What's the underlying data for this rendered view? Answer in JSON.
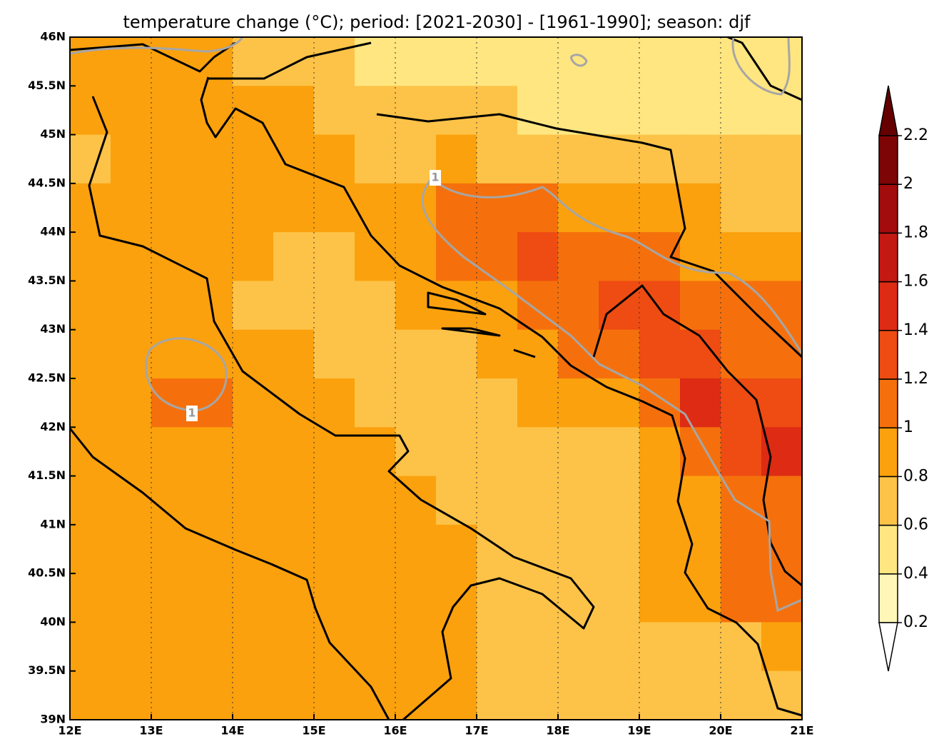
{
  "title": "temperature change (°C); period: [2021-2030] - [1961-1990]; season: djf",
  "lon_range": [
    12,
    21
  ],
  "lat_range": [
    39,
    46
  ],
  "lon_ticks": [
    {
      "value": 12,
      "label": "12E"
    },
    {
      "value": 13,
      "label": "13E"
    },
    {
      "value": 14,
      "label": "14E"
    },
    {
      "value": 15,
      "label": "15E"
    },
    {
      "value": 16,
      "label": "16E"
    },
    {
      "value": 17,
      "label": "17E"
    },
    {
      "value": 18,
      "label": "18E"
    },
    {
      "value": 19,
      "label": "19E"
    },
    {
      "value": 20,
      "label": "20E"
    },
    {
      "value": 21,
      "label": "21E"
    }
  ],
  "lat_ticks": [
    {
      "value": 46,
      "label": "46N"
    },
    {
      "value": 45.5,
      "label": "45.5N"
    },
    {
      "value": 45,
      "label": "45N"
    },
    {
      "value": 44.5,
      "label": "44.5N"
    },
    {
      "value": 44,
      "label": "44N"
    },
    {
      "value": 43.5,
      "label": "43.5N"
    },
    {
      "value": 43,
      "label": "43N"
    },
    {
      "value": 42.5,
      "label": "42.5N"
    },
    {
      "value": 42,
      "label": "42N"
    },
    {
      "value": 41.5,
      "label": "41.5N"
    },
    {
      "value": 41,
      "label": "41N"
    },
    {
      "value": 40.5,
      "label": "40.5N"
    },
    {
      "value": 40,
      "label": "40N"
    },
    {
      "value": 39.5,
      "label": "39.5N"
    },
    {
      "value": 39,
      "label": "39N"
    }
  ],
  "colorbar": {
    "levels": [
      0.2,
      0.4,
      0.6,
      0.8,
      1,
      1.2,
      1.4,
      1.6,
      1.8,
      2,
      2.2
    ],
    "colors": [
      "#fff6b8",
      "#ffe680",
      "#fdc348",
      "#fba10d",
      "#f5700c",
      "#ee4c12",
      "#de2b14",
      "#c41912",
      "#a20c0c",
      "#7e0505"
    ],
    "under_color": "#ffffff",
    "over_color": "#660000"
  },
  "contour_level": 1,
  "grid": {
    "values": [
      [
        0.9,
        0.9,
        0.9,
        0.9,
        0.7,
        0.7,
        0.7,
        0.5,
        0.5,
        0.5,
        0.5,
        0.5,
        0.5,
        0.5,
        0.5,
        0.5,
        0.5,
        0.5
      ],
      [
        0.9,
        0.9,
        0.9,
        0.9,
        0.9,
        0.9,
        0.7,
        0.7,
        0.7,
        0.7,
        0.7,
        0.5,
        0.5,
        0.5,
        0.5,
        0.5,
        0.5,
        0.5
      ],
      [
        0.7,
        0.9,
        0.9,
        0.9,
        0.9,
        0.9,
        0.9,
        0.7,
        0.7,
        0.9,
        0.7,
        0.7,
        0.7,
        0.7,
        0.7,
        0.7,
        0.7,
        0.7
      ],
      [
        0.9,
        0.9,
        0.9,
        0.9,
        0.9,
        0.9,
        0.9,
        0.9,
        0.9,
        1.1,
        1.1,
        1.1,
        0.9,
        0.9,
        0.9,
        0.9,
        0.7,
        0.7
      ],
      [
        0.9,
        0.9,
        0.9,
        0.9,
        0.9,
        0.7,
        0.7,
        0.9,
        0.9,
        1.1,
        1.1,
        1.3,
        1.1,
        1.1,
        1.1,
        0.9,
        0.9,
        0.9
      ],
      [
        0.9,
        0.9,
        0.9,
        0.9,
        0.7,
        0.7,
        0.7,
        0.7,
        0.9,
        0.9,
        0.9,
        1.1,
        1.1,
        1.3,
        1.3,
        1.1,
        1.1,
        1.1
      ],
      [
        0.9,
        0.9,
        0.9,
        0.9,
        0.9,
        0.9,
        0.7,
        0.7,
        0.7,
        0.7,
        0.9,
        0.9,
        1.1,
        1.1,
        1.3,
        1.3,
        1.1,
        1.1
      ],
      [
        0.9,
        0.9,
        1.1,
        1.1,
        0.9,
        0.9,
        0.9,
        0.7,
        0.7,
        0.7,
        0.7,
        0.9,
        0.9,
        0.9,
        1.1,
        1.5,
        1.3,
        1.3
      ],
      [
        0.9,
        0.9,
        0.9,
        0.9,
        0.9,
        0.9,
        0.9,
        0.9,
        0.7,
        0.7,
        0.7,
        0.7,
        0.7,
        0.7,
        0.9,
        1.1,
        1.3,
        1.5
      ],
      [
        0.9,
        0.9,
        0.9,
        0.9,
        0.9,
        0.9,
        0.9,
        0.9,
        0.9,
        0.7,
        0.7,
        0.7,
        0.7,
        0.7,
        0.9,
        0.9,
        1.1,
        1.1
      ],
      [
        0.9,
        0.9,
        0.9,
        0.9,
        0.9,
        0.9,
        0.9,
        0.9,
        0.9,
        0.9,
        0.7,
        0.7,
        0.7,
        0.7,
        0.9,
        0.9,
        1.1,
        1.1
      ],
      [
        0.9,
        0.9,
        0.9,
        0.9,
        0.9,
        0.9,
        0.9,
        0.9,
        0.9,
        0.9,
        0.7,
        0.7,
        0.7,
        0.7,
        0.9,
        0.9,
        1.1,
        1.1
      ],
      [
        0.9,
        0.9,
        0.9,
        0.9,
        0.9,
        0.9,
        0.9,
        0.9,
        0.9,
        0.9,
        0.7,
        0.7,
        0.7,
        0.7,
        0.7,
        0.7,
        0.7,
        0.9
      ],
      [
        0.9,
        0.9,
        0.9,
        0.9,
        0.9,
        0.9,
        0.9,
        0.9,
        0.9,
        0.9,
        0.7,
        0.7,
        0.7,
        0.7,
        0.7,
        0.7,
        0.7,
        0.7
      ]
    ]
  }
}
